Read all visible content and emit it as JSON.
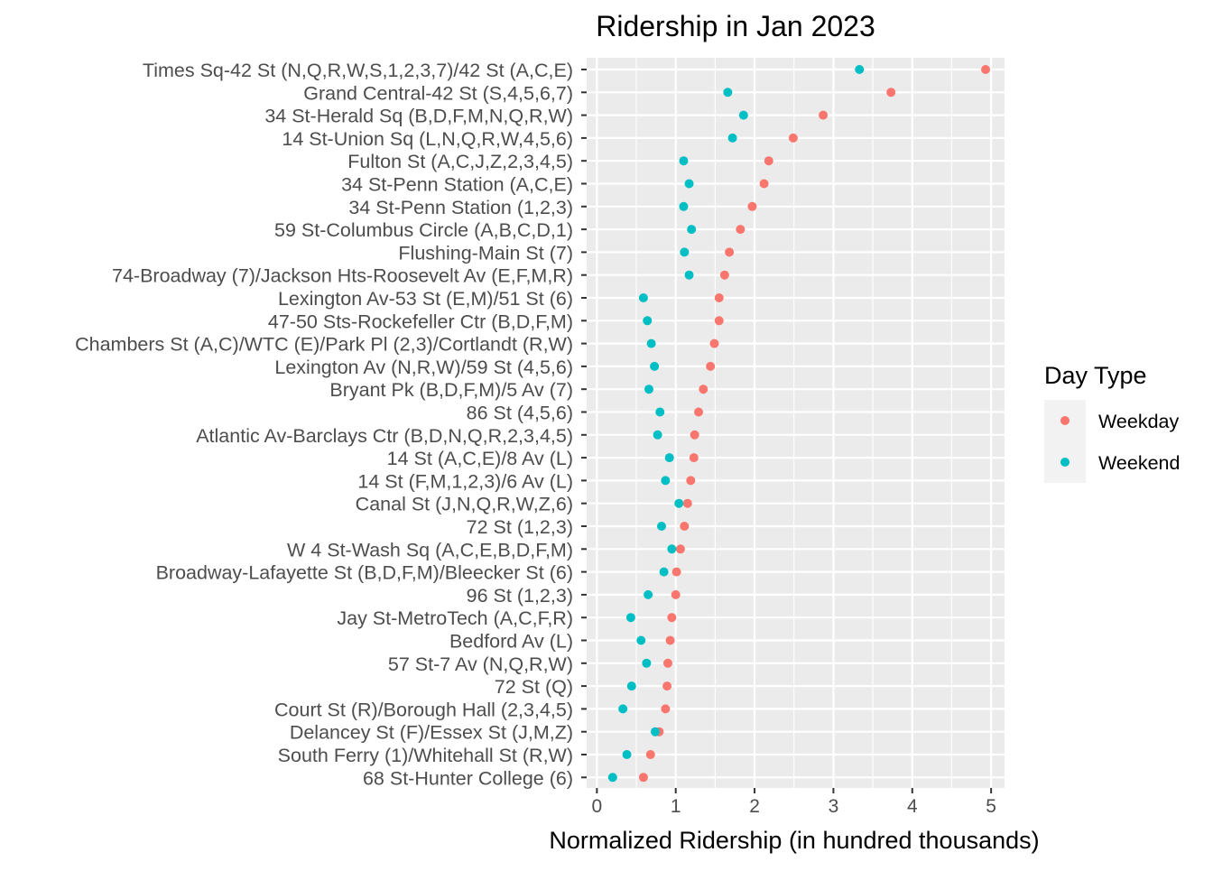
{
  "chart_data": {
    "type": "scatter",
    "title": "Ridership in Jan 2023",
    "xlabel": "Normalized Ridership (in hundred thousands)",
    "ylabel": "",
    "xlim": [
      -0.13,
      5.17
    ],
    "xticks": [
      "0",
      "1",
      "2",
      "3",
      "4",
      "5"
    ],
    "legend": {
      "title": "Day Type",
      "position": "right"
    },
    "series": [
      {
        "name": "Weekday",
        "color": "#F8766D"
      },
      {
        "name": "Weekend",
        "color": "#00BFC4"
      }
    ],
    "stations": [
      {
        "name": "Times Sq-42 St (N,Q,R,W,S,1,2,3,7)/42 St (A,C,E)",
        "weekday": 4.93,
        "weekend": 3.33
      },
      {
        "name": "Grand Central-42 St (S,4,5,6,7)",
        "weekday": 3.73,
        "weekend": 1.66
      },
      {
        "name": "34 St-Herald Sq (B,D,F,M,N,Q,R,W)",
        "weekday": 2.87,
        "weekend": 1.86
      },
      {
        "name": "14 St-Union Sq (L,N,Q,R,W,4,5,6)",
        "weekday": 2.49,
        "weekend": 1.72
      },
      {
        "name": "Fulton St (A,C,J,Z,2,3,4,5)",
        "weekday": 2.18,
        "weekend": 1.1
      },
      {
        "name": "34 St-Penn Station (A,C,E)",
        "weekday": 2.12,
        "weekend": 1.17
      },
      {
        "name": "34 St-Penn Station (1,2,3)",
        "weekday": 1.97,
        "weekend": 1.1
      },
      {
        "name": "59 St-Columbus Circle (A,B,C,D,1)",
        "weekday": 1.82,
        "weekend": 1.2
      },
      {
        "name": "Flushing-Main St (7)",
        "weekday": 1.68,
        "weekend": 1.11
      },
      {
        "name": "74-Broadway (7)/Jackson Hts-Roosevelt Av (E,F,M,R)",
        "weekday": 1.62,
        "weekend": 1.17
      },
      {
        "name": "Lexington Av-53 St (E,M)/51 St (6)",
        "weekday": 1.55,
        "weekend": 0.59
      },
      {
        "name": "47-50 Sts-Rockefeller Ctr (B,D,F,M)",
        "weekday": 1.55,
        "weekend": 0.64
      },
      {
        "name": "Chambers St (A,C)/WTC (E)/Park Pl (2,3)/Cortlandt (R,W)",
        "weekday": 1.49,
        "weekend": 0.69
      },
      {
        "name": "Lexington Av (N,R,W)/59 St (4,5,6)",
        "weekday": 1.44,
        "weekend": 0.73
      },
      {
        "name": "Bryant Pk (B,D,F,M)/5 Av (7)",
        "weekday": 1.35,
        "weekend": 0.66
      },
      {
        "name": "86 St (4,5,6)",
        "weekday": 1.29,
        "weekend": 0.8
      },
      {
        "name": "Atlantic Av-Barclays Ctr (B,D,N,Q,R,2,3,4,5)",
        "weekday": 1.24,
        "weekend": 0.77
      },
      {
        "name": "14 St (A,C,E)/8 Av (L)",
        "weekday": 1.23,
        "weekend": 0.92
      },
      {
        "name": "14 St (F,M,1,2,3)/6 Av (L)",
        "weekday": 1.19,
        "weekend": 0.87
      },
      {
        "name": "Canal St (J,N,Q,R,W,Z,6)",
        "weekday": 1.15,
        "weekend": 1.04
      },
      {
        "name": "72 St (1,2,3)",
        "weekday": 1.11,
        "weekend": 0.82
      },
      {
        "name": "W 4 St-Wash Sq (A,C,E,B,D,F,M)",
        "weekday": 1.06,
        "weekend": 0.95
      },
      {
        "name": "Broadway-Lafayette St (B,D,F,M)/Bleecker St (6)",
        "weekday": 1.01,
        "weekend": 0.85
      },
      {
        "name": "96 St (1,2,3)",
        "weekday": 1.0,
        "weekend": 0.65
      },
      {
        "name": "Jay St-MetroTech (A,C,F,R)",
        "weekday": 0.95,
        "weekend": 0.43
      },
      {
        "name": "Bedford Av (L)",
        "weekday": 0.93,
        "weekend": 0.56
      },
      {
        "name": "57 St-7 Av (N,Q,R,W)",
        "weekday": 0.9,
        "weekend": 0.63
      },
      {
        "name": "72 St (Q)",
        "weekday": 0.89,
        "weekend": 0.44
      },
      {
        "name": "Court St (R)/Borough Hall (2,3,4,5)",
        "weekday": 0.87,
        "weekend": 0.33
      },
      {
        "name": "Delancey St (F)/Essex St (J,M,Z)",
        "weekday": 0.79,
        "weekend": 0.74
      },
      {
        "name": "South Ferry (1)/Whitehall St (R,W)",
        "weekday": 0.68,
        "weekend": 0.38
      },
      {
        "name": "68 St-Hunter College (6)",
        "weekday": 0.59,
        "weekend": 0.2
      }
    ]
  }
}
